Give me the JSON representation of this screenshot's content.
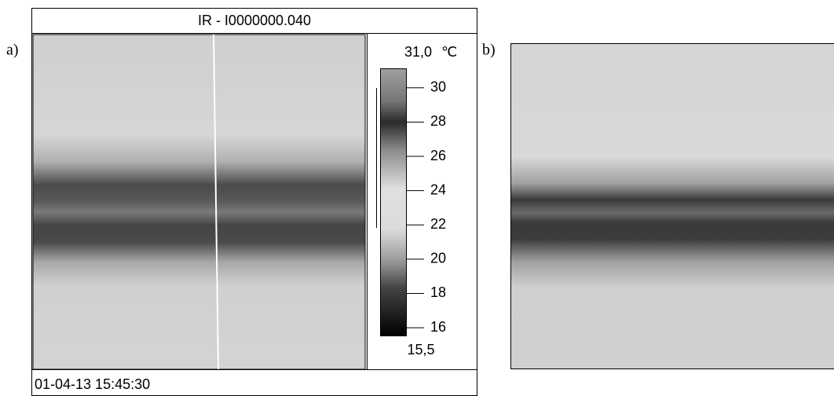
{
  "panel_a": {
    "label": "a)",
    "title": "IR - I0000000.040",
    "timestamp": "01-04-13 15:45:30",
    "colorbar": {
      "max": {
        "value": 31.0,
        "label": "31,0"
      },
      "min": {
        "value": 15.5,
        "label": "15,5"
      },
      "unit": "℃",
      "ticks": [
        16,
        18,
        20,
        22,
        24,
        26,
        28,
        30
      ]
    }
  },
  "panel_b": {
    "label": "b)"
  }
}
